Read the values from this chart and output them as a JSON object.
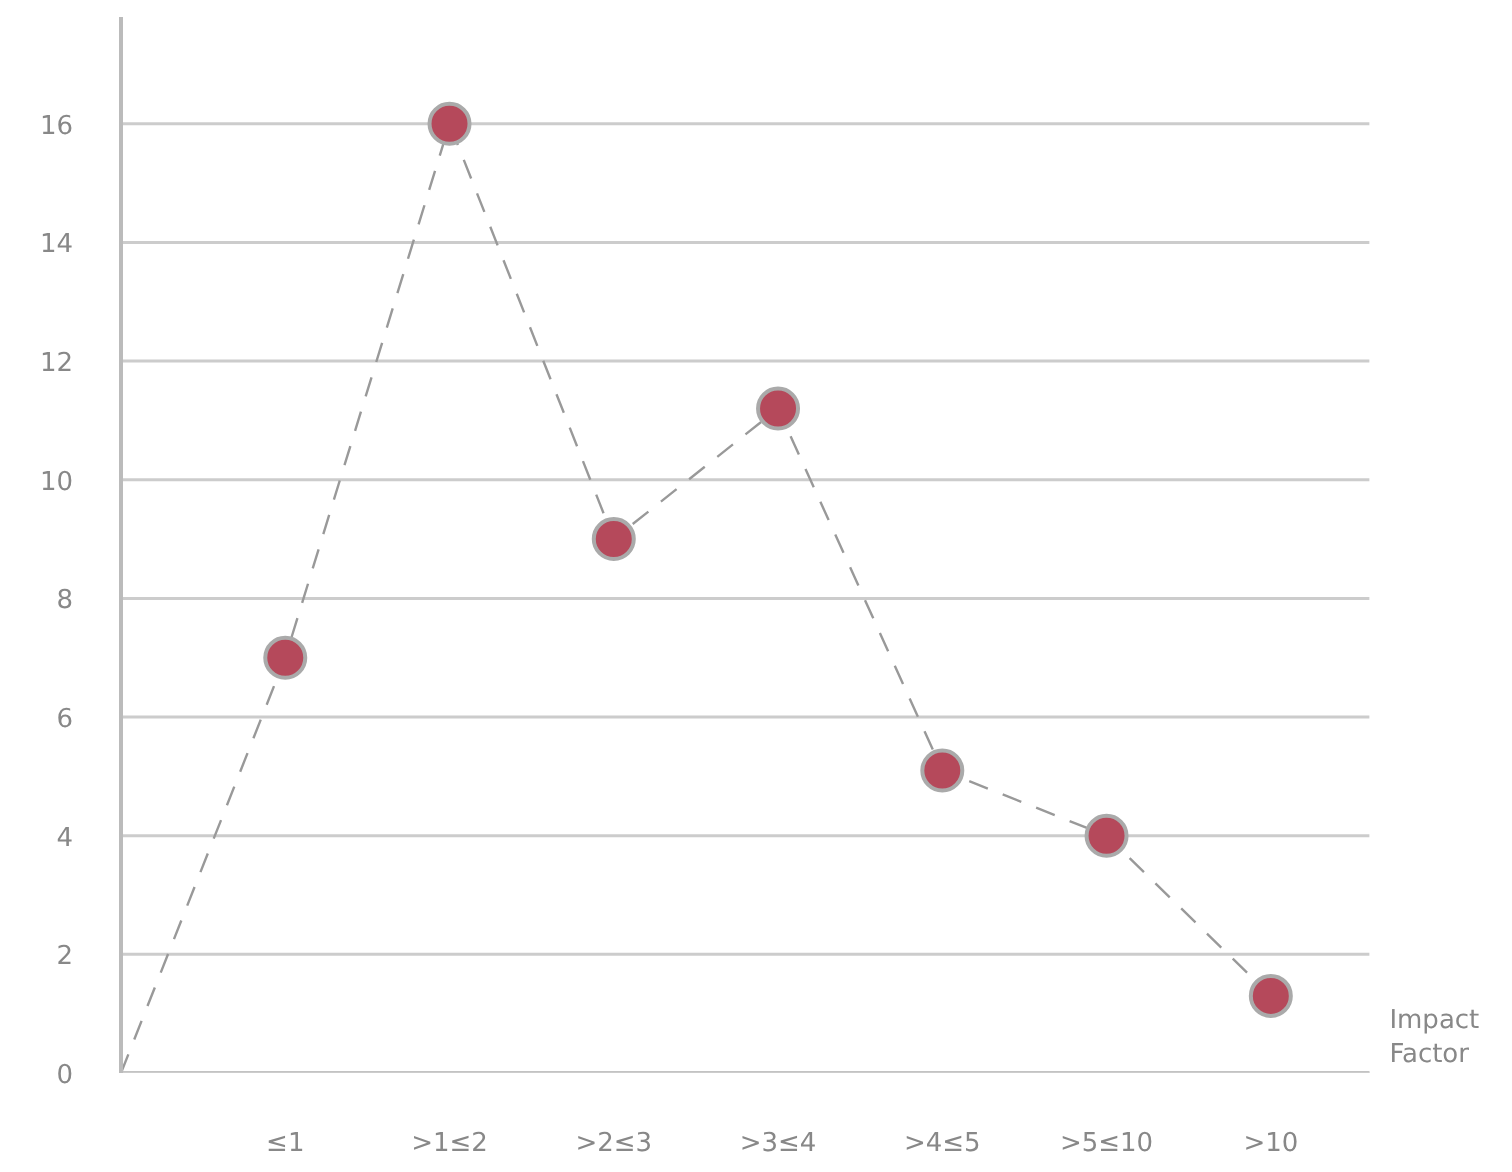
{
  "chart_data": {
    "type": "line",
    "xlabel": "Impact Factor",
    "categories": [
      null,
      "≤1",
      ">1≤2",
      ">2≤3",
      ">3≤4",
      ">4≤5",
      ">5≤10",
      ">10"
    ],
    "ylim": [
      0,
      17.8
    ],
    "yticks": [
      0,
      2,
      4,
      6,
      8,
      10,
      12,
      14,
      16
    ],
    "grid": "y",
    "series": [
      {
        "color": "#999999",
        "line_style": "dashed",
        "marker": "none",
        "values": [
          0,
          7,
          16,
          9,
          11.2,
          5.1,
          4,
          1.3
        ]
      },
      {
        "type": "scatter",
        "color": "#b5495b",
        "marker": "circle",
        "values": [
          null,
          7,
          16,
          9,
          11.2,
          5.1,
          4,
          1.3
        ]
      }
    ]
  }
}
